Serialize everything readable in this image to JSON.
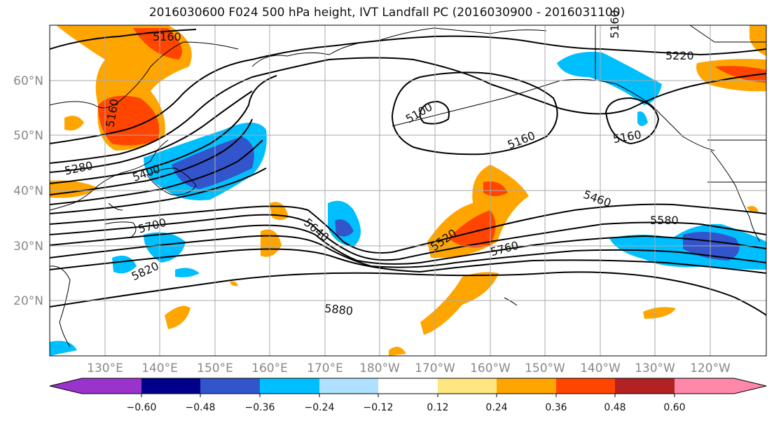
{
  "title": "2016030600 F024 500 hPa height, IVT Landfall PC (2016030900 - 2016031100)",
  "lat_labels": [
    "60°N",
    "50°N",
    "40°N",
    "30°N",
    "20°N"
  ],
  "lon_labels": [
    "130°E",
    "140°E",
    "150°E",
    "160°E",
    "170°E",
    "180°W",
    "170°W",
    "160°W",
    "150°W",
    "140°W",
    "130°W",
    "120°W"
  ],
  "contour_labels": [
    "5160",
    "5160",
    "5100",
    "5160",
    "5160",
    "5220",
    "5280",
    "5400",
    "5160",
    "5460",
    "5580",
    "5700",
    "5640",
    "5520",
    "5760",
    "5820",
    "5880"
  ],
  "colorbar": {
    "colors": [
      "#9933cc",
      "#00008b",
      "#3355cc",
      "#00bfff",
      "#b0e0ff",
      "#ffffff",
      "#ffe680",
      "#ffa500",
      "#ff4500",
      "#b22222",
      "#ff88aa"
    ],
    "ticks": [
      "−0.60",
      "−0.48",
      "−0.36",
      "−0.24",
      "−0.12",
      "0.12",
      "0.24",
      "0.36",
      "0.48",
      "0.60"
    ]
  },
  "colors": {
    "grid": "#aaaaaa",
    "label": "#888888",
    "contour": "#000000"
  }
}
